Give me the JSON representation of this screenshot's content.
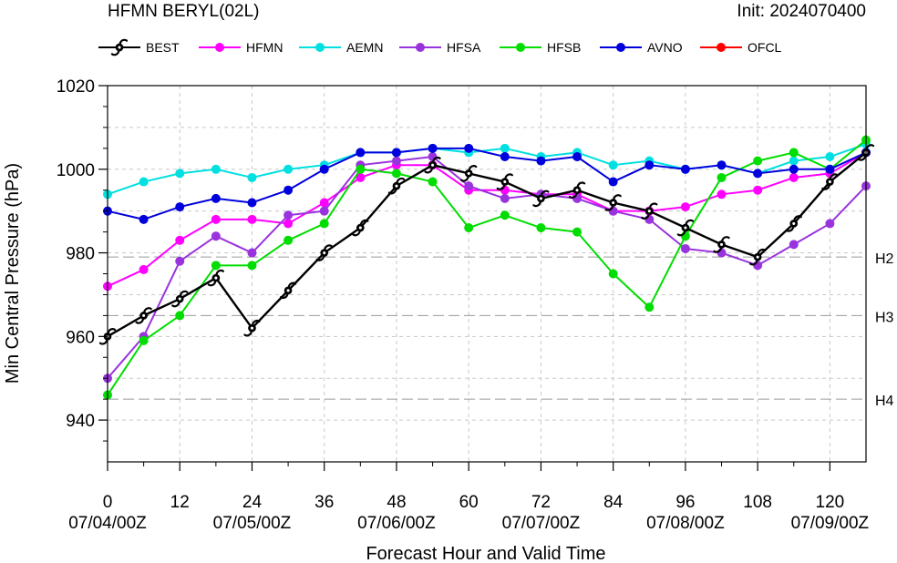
{
  "chart_data": {
    "type": "line",
    "title": "HFMN BERYL(02L)",
    "subtitle": "Init: 2024070400",
    "xlabel": "Forecast Hour and Valid Time",
    "ylabel": "Min Central Pressure (hPa)",
    "xlim": [
      0,
      126
    ],
    "ylim": [
      930,
      1020
    ],
    "x_ticks": [
      0,
      12,
      24,
      36,
      48,
      60,
      72,
      84,
      96,
      108,
      120
    ],
    "x_date_labels": [
      {
        "x": 0,
        "label": "07/04/00Z"
      },
      {
        "x": 24,
        "label": "07/05/00Z"
      },
      {
        "x": 48,
        "label": "07/06/00Z"
      },
      {
        "x": 72,
        "label": "07/07/00Z"
      },
      {
        "x": 96,
        "label": "07/08/00Z"
      },
      {
        "x": 120,
        "label": "07/09/00Z"
      }
    ],
    "y_ticks": [
      940,
      960,
      980,
      1000,
      1020
    ],
    "grid": true,
    "legend_position": "top",
    "thresholds": [
      {
        "label": "H2",
        "value": 979
      },
      {
        "label": "H3",
        "value": 965
      },
      {
        "label": "H4",
        "value": 945
      }
    ],
    "series": [
      {
        "name": "BEST",
        "color": "#000000",
        "marker": "hurricane",
        "x": [
          0,
          6,
          12,
          18,
          24,
          30,
          36,
          42,
          48,
          54,
          60,
          66,
          72,
          78,
          84,
          90,
          96,
          102,
          108,
          114,
          120,
          126
        ],
        "y": [
          960,
          965,
          969,
          974,
          962,
          971,
          980,
          986,
          996,
          1001,
          999,
          997,
          993,
          995,
          992,
          990,
          986,
          982,
          979,
          987,
          997,
          1004
        ]
      },
      {
        "name": "HFMN",
        "color": "#ff00ff",
        "marker": "circle",
        "x": [
          0,
          6,
          12,
          18,
          24,
          30,
          36,
          42,
          48,
          54,
          60,
          66,
          72,
          78,
          84,
          90,
          96,
          102,
          108,
          114,
          120,
          126
        ],
        "y": [
          972,
          976,
          983,
          988,
          988,
          987,
          992,
          998,
          1001,
          1001,
          995,
          995,
          994,
          994,
          990,
          990,
          991,
          994,
          995,
          998,
          999,
          1004
        ]
      },
      {
        "name": "AEMN",
        "color": "#00e0e0",
        "marker": "circle",
        "x": [
          0,
          6,
          12,
          18,
          24,
          30,
          36,
          42,
          48,
          54,
          60,
          66,
          72,
          78,
          84,
          90,
          96,
          102,
          108,
          114,
          120,
          126
        ],
        "y": [
          994,
          997,
          999,
          1000,
          998,
          1000,
          1001,
          1004,
          1004,
          1005,
          1004,
          1005,
          1003,
          1004,
          1001,
          1002,
          1000,
          1001,
          999,
          1002,
          1003,
          1006
        ]
      },
      {
        "name": "HFSA",
        "color": "#9933dd",
        "marker": "circle",
        "x": [
          0,
          6,
          12,
          18,
          24,
          30,
          36,
          42,
          48,
          54,
          60,
          66,
          72,
          78,
          84,
          90,
          96,
          102,
          108,
          114,
          120,
          126
        ],
        "y": [
          950,
          960,
          978,
          984,
          980,
          989,
          990,
          1001,
          1002,
          1003,
          996,
          993,
          994,
          993,
          990,
          988,
          981,
          980,
          977,
          982,
          987,
          996
        ]
      },
      {
        "name": "HFSB",
        "color": "#00dd00",
        "marker": "circle",
        "x": [
          0,
          6,
          12,
          18,
          24,
          30,
          36,
          42,
          48,
          54,
          60,
          66,
          72,
          78,
          84,
          90,
          96,
          102,
          108,
          114,
          120,
          126
        ],
        "y": [
          946,
          959,
          965,
          977,
          977,
          983,
          987,
          1000,
          999,
          997,
          986,
          989,
          986,
          985,
          975,
          967,
          984,
          998,
          1002,
          1004,
          1000,
          1007
        ]
      },
      {
        "name": "AVNO",
        "color": "#0000dd",
        "marker": "circle",
        "x": [
          0,
          6,
          12,
          18,
          24,
          30,
          36,
          42,
          48,
          54,
          60,
          66,
          72,
          78,
          84,
          90,
          96,
          102,
          108,
          114,
          120,
          126
        ],
        "y": [
          990,
          988,
          991,
          993,
          992,
          995,
          1000,
          1004,
          1004,
          1005,
          1005,
          1003,
          1002,
          1003,
          997,
          1001,
          1000,
          1001,
          999,
          1000,
          1000,
          1004
        ]
      },
      {
        "name": "OFCL",
        "color": "#ff0000",
        "marker": "circle",
        "x": [],
        "y": []
      }
    ]
  }
}
